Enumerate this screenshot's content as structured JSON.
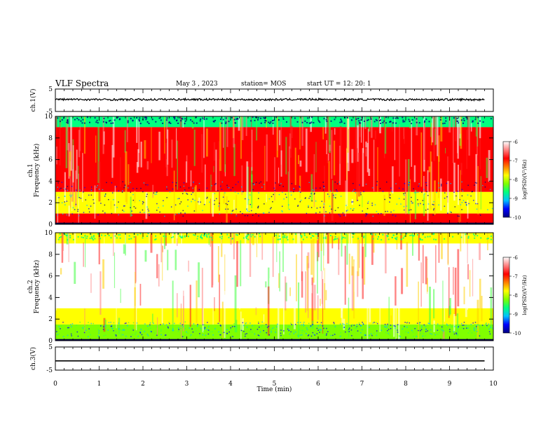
{
  "header": {
    "title": "VLF Spectra",
    "date": "May 3  , 2023",
    "station": "station= MOS",
    "start_ut": "start  UT =    12: 20: 1"
  },
  "chart_data": [
    {
      "type": "line",
      "ylabel": "ch.1(V)",
      "ylim": [
        -5,
        5
      ],
      "yticks": [
        "5",
        "-5"
      ],
      "xlim": [
        0,
        10
      ],
      "values_note_free": true,
      "x": [
        0,
        1,
        2,
        3,
        4,
        5,
        6,
        7,
        8,
        9,
        9.8
      ],
      "y": [
        0.4,
        0.3,
        0.3,
        0.4,
        0.3,
        0.3,
        0.4,
        0.3,
        0.3,
        0.3,
        0.3
      ]
    },
    {
      "type": "heatmap",
      "ylabel": "ch.1\nFrequency (kHz)",
      "ylim": [
        0,
        10
      ],
      "yticks": [
        "0",
        "2",
        "4",
        "6",
        "8",
        "10"
      ],
      "xlim": [
        0,
        10
      ],
      "colorbar": {
        "label": "log(PSD)(V²/Hz)",
        "range": [
          -10,
          -6
        ],
        "ticks": [
          "-6",
          "-7",
          "-8",
          "-9",
          "-10"
        ],
        "colors": [
          "#000080",
          "#0000ff",
          "#00c0ff",
          "#00ff80",
          "#80ff00",
          "#ffff00",
          "#ff8000",
          "#ff0000",
          "#ff8080",
          "#ffffff"
        ]
      },
      "bands": [
        {
          "fmin": 9.0,
          "fmax": 10.0,
          "level": -8.6
        },
        {
          "fmin": 3.0,
          "fmax": 9.0,
          "level": -6.8
        },
        {
          "fmin": 1.0,
          "fmax": 3.0,
          "level": -8.0
        },
        {
          "fmin": 0.0,
          "fmax": 1.0,
          "level": -7.0
        }
      ]
    },
    {
      "type": "heatmap",
      "ylabel": "ch.2\nFrequency (kHz)",
      "ylim": [
        0,
        10
      ],
      "yticks": [
        "0",
        "2",
        "4",
        "6",
        "8",
        "10"
      ],
      "xlim": [
        0,
        10
      ],
      "colorbar": {
        "label": "log(PSD)(V²/Hz)",
        "range": [
          -10,
          -6
        ],
        "ticks": [
          "-6",
          "-7",
          "-8",
          "-9",
          "-10"
        ],
        "colors": [
          "#000080",
          "#0000ff",
          "#00c0ff",
          "#00ff80",
          "#80ff00",
          "#ffff00",
          "#ff8000",
          "#ff0000",
          "#ff8080",
          "#ffffff"
        ]
      },
      "bands": [
        {
          "fmin": 9.0,
          "fmax": 10.0,
          "level": -7.6
        },
        {
          "fmin": 3.0,
          "fmax": 9.0,
          "level": -6.2
        },
        {
          "fmin": 1.5,
          "fmax": 3.0,
          "level": -7.8
        },
        {
          "fmin": 0.0,
          "fmax": 1.5,
          "level": -8.2
        }
      ]
    },
    {
      "type": "line",
      "ylabel": "ch.3(V)",
      "ylim": [
        -5,
        5
      ],
      "yticks": [
        "5",
        "-5"
      ],
      "xlim": [
        0,
        10
      ],
      "xlabel": "Time  (min)",
      "xticks": [
        "0",
        "1",
        "2",
        "3",
        "4",
        "5",
        "6",
        "7",
        "8",
        "9",
        "10"
      ],
      "x": [
        0,
        9.8
      ],
      "y": [
        -1,
        -1
      ]
    }
  ]
}
